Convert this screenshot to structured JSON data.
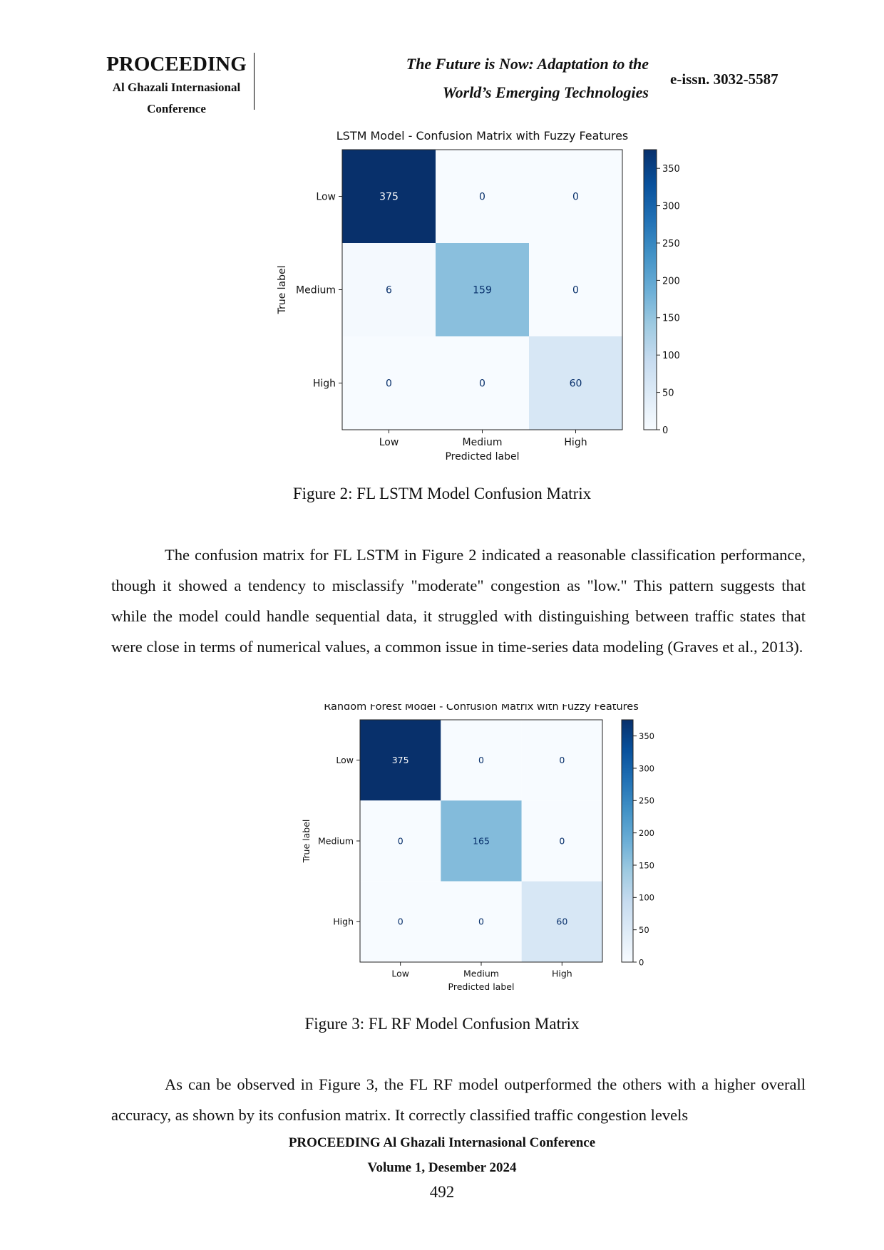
{
  "header": {
    "proceeding": "PROCEEDING",
    "org_line1": "Al Ghazali Internasional",
    "org_line2": "Conference",
    "theme_line1": "The Future is Now: Adaptation to the",
    "theme_line2": "World’s Emerging Technologies",
    "issn": "e-issn. 3032-5587"
  },
  "chart_data": [
    {
      "type": "heatmap",
      "title": "LSTM Model - Confusion Matrix with Fuzzy Features",
      "xlabel": "Predicted label",
      "ylabel": "True label",
      "x_categories": [
        "Low",
        "Medium",
        "High"
      ],
      "y_categories": [
        "Low",
        "Medium",
        "High"
      ],
      "matrix": [
        [
          375,
          0,
          0
        ],
        [
          6,
          159,
          0
        ],
        [
          0,
          0,
          60
        ]
      ],
      "colormap": "Blues",
      "colorbar_ticks": [
        0,
        50,
        100,
        150,
        200,
        250,
        300,
        350
      ],
      "vmax": 375
    },
    {
      "type": "heatmap",
      "title": "Random Forest Model - Confusion Matrix with Fuzzy Features",
      "xlabel": "Predicted label",
      "ylabel": "True label",
      "x_categories": [
        "Low",
        "Medium",
        "High"
      ],
      "y_categories": [
        "Low",
        "Medium",
        "High"
      ],
      "matrix": [
        [
          375,
          0,
          0
        ],
        [
          0,
          165,
          0
        ],
        [
          0,
          0,
          60
        ]
      ],
      "colormap": "Blues",
      "colorbar_ticks": [
        0,
        50,
        100,
        150,
        200,
        250,
        300,
        350
      ],
      "vmax": 375
    }
  ],
  "captions": {
    "fig2": "Figure 2: FL LSTM Model Confusion Matrix",
    "fig3": "Figure 3: FL RF Model Confusion Matrix"
  },
  "paragraphs": {
    "p1": "The confusion matrix for FL LSTM in Figure 2 indicated a reasonable classification performance, though it showed a tendency to misclassify \"moderate\" congestion as \"low.\" This pattern suggests that while the model could handle sequential data, it struggled with distinguishing between traffic states that were close in terms of numerical values, a common issue in time-series data modeling (Graves et al., 2013).",
    "p2": "As can be observed in Figure 3, the FL RF model outperformed the others with a higher overall accuracy, as shown by its confusion matrix. It correctly classified traffic congestion levels"
  },
  "footer": {
    "line1": "PROCEEDING Al Ghazali Internasional Conference",
    "line2": "Volume 1, Desember 2024",
    "page": "492"
  }
}
